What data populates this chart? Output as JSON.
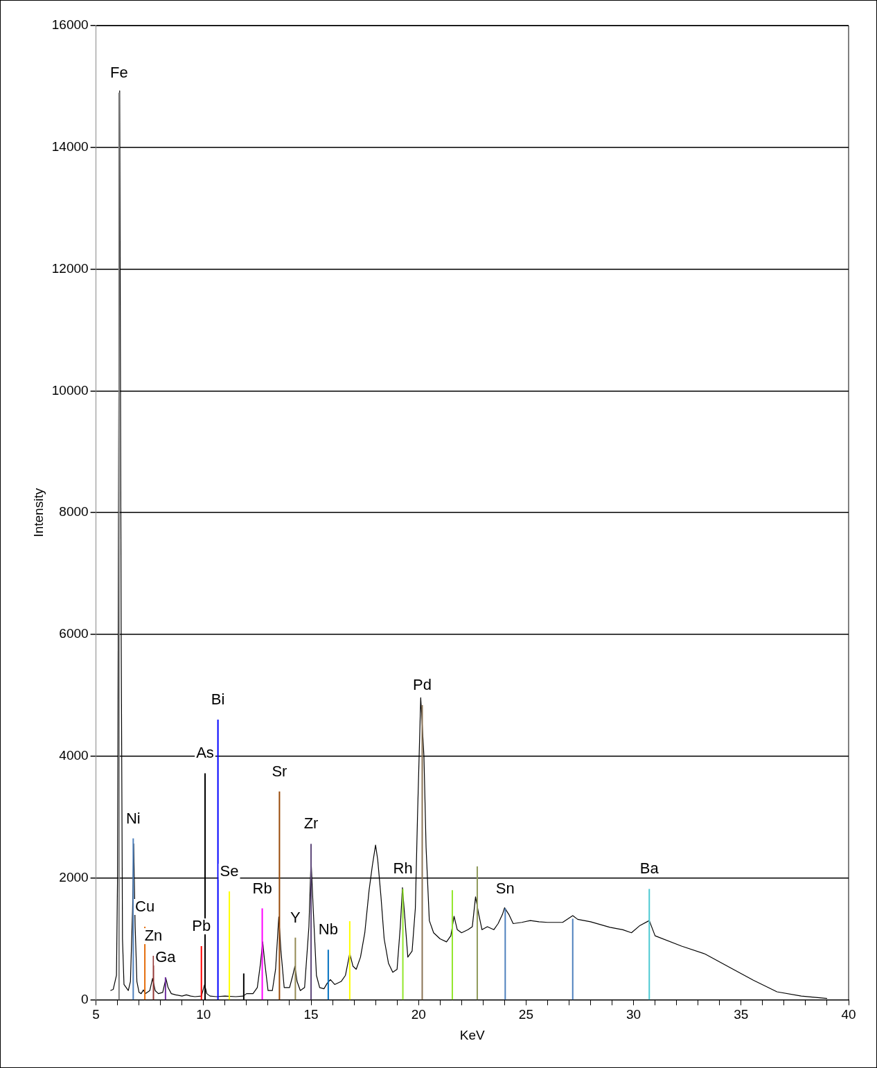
{
  "chart_data": {
    "type": "line",
    "xlabel": "KeV",
    "ylabel": "Intensity",
    "xlim": [
      5,
      40
    ],
    "ylim": [
      0,
      16000
    ],
    "xticks": [
      5,
      {
        "value": 6,
        "label": null
      },
      {
        "value": 7,
        "label": null
      },
      {
        "value": 8,
        "label": null
      },
      {
        "value": 9,
        "label": null
      },
      10,
      {
        "value": 11,
        "label": null
      },
      {
        "value": 12,
        "label": null
      },
      {
        "value": 13,
        "label": null
      },
      {
        "value": 14,
        "label": null
      },
      15,
      {
        "value": 16,
        "label": null
      },
      {
        "value": 17,
        "label": null
      },
      {
        "value": 18,
        "label": null
      },
      {
        "value": 19,
        "label": null
      },
      20,
      {
        "value": 21,
        "label": null
      },
      {
        "value": 22,
        "label": null
      },
      {
        "value": 23,
        "label": null
      },
      {
        "value": 24,
        "label": null
      },
      25,
      {
        "value": 26,
        "label": null
      },
      {
        "value": 27,
        "label": null
      },
      {
        "value": 28,
        "label": null
      },
      {
        "value": 29,
        "label": null
      },
      30,
      {
        "value": 31,
        "label": null
      },
      {
        "value": 32,
        "label": null
      },
      {
        "value": 33,
        "label": null
      },
      {
        "value": 34,
        "label": null
      },
      35,
      {
        "value": 36,
        "label": null
      },
      {
        "value": 37,
        "label": null
      },
      {
        "value": 38,
        "label": null
      },
      {
        "value": 39,
        "label": null
      },
      40
    ],
    "yticks": [
      0,
      2000,
      4000,
      6000,
      8000,
      10000,
      12000,
      14000,
      16000
    ],
    "grid": "y",
    "legend": false,
    "marker": "none",
    "series": [
      {
        "name": "Fe",
        "color": "#808080",
        "x": [
          6.07,
          6.07
        ],
        "values": [
          0,
          14900
        ]
      },
      {
        "name": "Ni",
        "color": "#4f81bd",
        "x": [
          6.73,
          6.73
        ],
        "values": [
          0,
          2650
        ]
      },
      {
        "name": "Cu",
        "color": "#e46c0a",
        "x": [
          7.27,
          7.27
        ],
        "values": [
          0,
          1200
        ]
      },
      {
        "name": "Zn",
        "color": "#953735",
        "x": [
          7.67,
          7.67
        ],
        "values": [
          0,
          720
        ]
      },
      {
        "name": "Ga",
        "color": "#7030a0",
        "x": [
          8.23,
          8.23
        ],
        "values": [
          0,
          370
        ]
      },
      {
        "name": "Pb",
        "color": "#ff0000",
        "x": [
          9.9,
          9.9
        ],
        "values": [
          0,
          880
        ]
      },
      {
        "name": "As",
        "color": "#000000",
        "x": [
          10.07,
          10.07
        ],
        "values": [
          0,
          3720
        ]
      },
      {
        "name": "Bi",
        "color": "#0000ff",
        "x": [
          10.67,
          10.67
        ],
        "values": [
          0,
          4600
        ]
      },
      {
        "name": "Se",
        "color": "#ffff00",
        "x": [
          11.2,
          11.2
        ],
        "values": [
          0,
          1780
        ]
      },
      {
        "color": "#000000",
        "x": [
          11.87,
          11.87
        ],
        "values": [
          0,
          430
        ]
      },
      {
        "name": "Rb",
        "color": "#ff00ff",
        "x": [
          12.73,
          12.73
        ],
        "values": [
          0,
          1500
        ]
      },
      {
        "name": "Sr",
        "color": "#984807",
        "x": [
          13.53,
          13.53
        ],
        "values": [
          0,
          3420
        ]
      },
      {
        "name": "Y",
        "color": "#948a54",
        "x": [
          14.27,
          14.27
        ],
        "values": [
          0,
          1020
        ]
      },
      {
        "name": "Zr",
        "color": "#604a7b",
        "x": [
          15,
          15
        ],
        "values": [
          0,
          2560
        ]
      },
      {
        "name": "Nb",
        "color": "#0070c0",
        "x": [
          15.8,
          15.8
        ],
        "values": [
          0,
          820
        ]
      },
      {
        "color": "#ffff00",
        "x": [
          16.8,
          16.8
        ],
        "values": [
          0,
          1290
        ]
      },
      {
        "name": "Rh",
        "color": "#92e62a",
        "x": [
          19.27,
          19.27
        ],
        "values": [
          0,
          1820
        ]
      },
      {
        "name": "Pd",
        "color": "#8b7355",
        "x": [
          20.17,
          20.17
        ],
        "values": [
          0,
          4840
        ]
      },
      {
        "color": "#92e62a",
        "x": [
          21.57,
          21.57
        ],
        "values": [
          0,
          1800
        ]
      },
      {
        "color": "#8f9a5a",
        "x": [
          22.73,
          22.73
        ],
        "values": [
          0,
          2190
        ]
      },
      {
        "name": "Sn",
        "color": "#4f81bd",
        "x": [
          24.03,
          24.03
        ],
        "values": [
          0,
          1500
        ]
      },
      {
        "color": "#4f81bd",
        "x": [
          27.17,
          27.17
        ],
        "values": [
          0,
          1330
        ]
      },
      {
        "name": "Ba",
        "color": "#4bc9d2",
        "x": [
          30.73,
          30.73
        ],
        "values": [
          0,
          1820
        ]
      },
      {
        "color": "#000000",
        "x": [
          5.67,
          5.8,
          5.95,
          6.0,
          6.1,
          6.17,
          6.23,
          6.3,
          6.5,
          6.6,
          6.7,
          6.75,
          6.82,
          6.9,
          7.0,
          7.1,
          7.2,
          7.3,
          7.5,
          7.63,
          7.75,
          7.9,
          8.1,
          8.25,
          8.35,
          8.5,
          8.7,
          9.0,
          9.2,
          9.4,
          9.6,
          9.9,
          10.05,
          10.15,
          10.3,
          10.6,
          11.0,
          11.5,
          11.85,
          12.0,
          12.3,
          12.5,
          12.65,
          12.75,
          12.85,
          13.0,
          13.2,
          13.35,
          13.5,
          13.6,
          13.75,
          14.0,
          14.15,
          14.25,
          14.35,
          14.5,
          14.7,
          14.9,
          15.0,
          15.1,
          15.25,
          15.4,
          15.6,
          15.75,
          15.9,
          16.1,
          16.4,
          16.6,
          16.8,
          16.95,
          17.1,
          17.3,
          17.5,
          17.7,
          17.85,
          18.0,
          18.1,
          18.25,
          18.4,
          18.6,
          18.8,
          19.0,
          19.15,
          19.25,
          19.35,
          19.5,
          19.7,
          19.85,
          19.95,
          20.1,
          20.25,
          20.35,
          20.5,
          20.7,
          21.0,
          21.3,
          21.5,
          21.65,
          21.8,
          22.0,
          22.3,
          22.5,
          22.65,
          22.8,
          22.95,
          23.2,
          23.5,
          23.7,
          23.9,
          24.0,
          24.2,
          24.4,
          24.8,
          25.2,
          25.6,
          26.0,
          26.7,
          27.17,
          27.4,
          28.0,
          28.9,
          29.5,
          29.9,
          30.3,
          30.73,
          31.0,
          32.23,
          33.33,
          34.47,
          35.57,
          36.67,
          37.8,
          39.0
        ],
        "values": [
          150,
          170,
          400,
          2000,
          14930,
          6000,
          1000,
          250,
          150,
          300,
          1500,
          2560,
          1200,
          300,
          120,
          100,
          160,
          100,
          150,
          350,
          150,
          100,
          120,
          350,
          200,
          100,
          80,
          60,
          80,
          60,
          50,
          60,
          250,
          100,
          60,
          50,
          60,
          50,
          60,
          100,
          100,
          200,
          600,
          950,
          600,
          150,
          150,
          500,
          1360,
          800,
          200,
          200,
          400,
          550,
          300,
          150,
          200,
          1200,
          2300,
          1500,
          400,
          200,
          180,
          270,
          330,
          250,
          300,
          400,
          760,
          550,
          500,
          700,
          1100,
          1800,
          2200,
          2540,
          2300,
          1700,
          1000,
          600,
          450,
          500,
          1200,
          1840,
          1400,
          700,
          800,
          1500,
          3000,
          4960,
          4000,
          2500,
          1300,
          1100,
          1000,
          950,
          1050,
          1370,
          1150,
          1100,
          1150,
          1200,
          1690,
          1400,
          1150,
          1200,
          1150,
          1250,
          1400,
          1510,
          1400,
          1250,
          1270,
          1300,
          1280,
          1270,
          1270,
          1380,
          1320,
          1280,
          1190,
          1150,
          1100,
          1220,
          1300,
          1050,
          880,
          750,
          530,
          320,
          130,
          60,
          20
        ]
      }
    ]
  }
}
